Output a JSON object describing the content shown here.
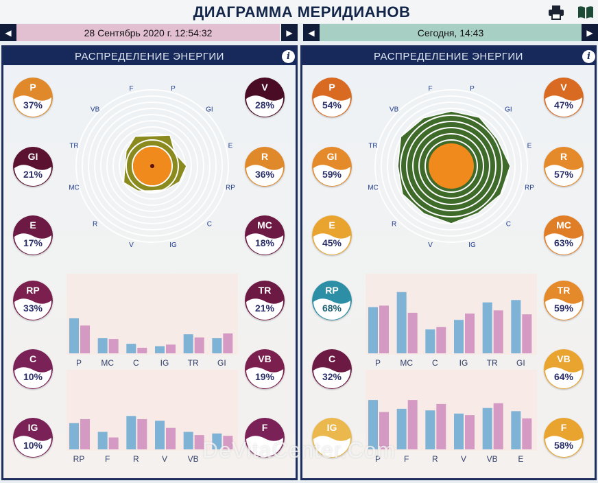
{
  "header": {
    "title": "ДИАГРАММА МЕРИДИАНОВ"
  },
  "icons": {
    "print": "printer-icon",
    "book": "book-icon"
  },
  "left": {
    "date": "28 Сентябрь 2020 г. 12:54:32",
    "panel_title": "РАСПРЕДЕЛЕНИЕ ЭНЕРГИИ",
    "badges": [
      {
        "name": "P",
        "pct": "37%",
        "color": "#e0892a"
      },
      {
        "name": "GI",
        "pct": "21%",
        "color": "#5a1230"
      },
      {
        "name": "E",
        "pct": "17%",
        "color": "#6c1a44"
      },
      {
        "name": "RP",
        "pct": "33%",
        "color": "#7a1f4e"
      },
      {
        "name": "C",
        "pct": "10%",
        "color": "#7a2157"
      },
      {
        "name": "IG",
        "pct": "10%",
        "color": "#7a2157"
      },
      {
        "name": "V",
        "pct": "28%",
        "color": "#4a0c24"
      },
      {
        "name": "R",
        "pct": "36%",
        "color": "#e0892a"
      },
      {
        "name": "MC",
        "pct": "18%",
        "color": "#6c1a44"
      },
      {
        "name": "TR",
        "pct": "21%",
        "color": "#6c1a44"
      },
      {
        "name": "VB",
        "pct": "19%",
        "color": "#7a1f4e"
      },
      {
        "name": "F",
        "pct": "",
        "color": "#7a2157"
      }
    ],
    "radar": {
      "labels": [
        "F",
        "P",
        "GI",
        "E",
        "RP",
        "C",
        "IG",
        "V",
        "R",
        "MC",
        "TR",
        "VB"
      ],
      "fill": "#8a8a1e"
    },
    "chart_top": {
      "type": "bar",
      "categories": [
        "P",
        "MC",
        "C",
        "IG",
        "TR",
        "GI"
      ],
      "series": [
        {
          "values": [
            44,
            19,
            12,
            9,
            24,
            19
          ],
          "color": "#7fb3d6"
        },
        {
          "values": [
            35,
            18,
            7,
            11,
            20,
            25
          ],
          "color": "#d59ac4"
        }
      ],
      "ylim": [
        0,
        100
      ]
    },
    "chart_bottom": {
      "type": "bar",
      "categories": [
        "RP",
        "F",
        "R",
        "V",
        "VB",
        ""
      ],
      "series": [
        {
          "values": [
            33,
            22,
            42,
            36,
            22,
            20
          ],
          "color": "#7fb3d6"
        },
        {
          "values": [
            38,
            15,
            38,
            27,
            18,
            17
          ],
          "color": "#d59ac4"
        }
      ],
      "ylim": [
        0,
        100
      ]
    }
  },
  "right": {
    "date": "Сегодня, 14:43",
    "panel_title": "РАСПРЕДЕЛЕНИЕ ЭНЕРГИИ",
    "badges": [
      {
        "name": "P",
        "pct": "54%",
        "color": "#d86a22"
      },
      {
        "name": "GI",
        "pct": "59%",
        "color": "#e48a2a"
      },
      {
        "name": "E",
        "pct": "45%",
        "color": "#e9a430"
      },
      {
        "name": "RP",
        "pct": "68%",
        "color": "#2c8fa6"
      },
      {
        "name": "C",
        "pct": "32%",
        "color": "#6c1a44"
      },
      {
        "name": "IG",
        "pct": "",
        "color": "#eab84c"
      },
      {
        "name": "V",
        "pct": "47%",
        "color": "#d86a22"
      },
      {
        "name": "R",
        "pct": "57%",
        "color": "#e48a2a"
      },
      {
        "name": "MC",
        "pct": "63%",
        "color": "#e07e28"
      },
      {
        "name": "TR",
        "pct": "59%",
        "color": "#e48a2a"
      },
      {
        "name": "VB",
        "pct": "64%",
        "color": "#e9a430"
      },
      {
        "name": "F",
        "pct": "58%",
        "color": "#e9a430"
      }
    ],
    "radar": {
      "labels": [
        "F",
        "P",
        "GI",
        "E",
        "RP",
        "C",
        "IG",
        "V",
        "R",
        "MC",
        "TR",
        "VB"
      ],
      "fill": "#3e6a2a"
    },
    "chart_top": {
      "type": "bar",
      "categories": [
        "P",
        "MC",
        "C",
        "IG",
        "TR",
        "GI"
      ],
      "series": [
        {
          "values": [
            58,
            77,
            30,
            42,
            64,
            67
          ],
          "color": "#7fb3d6"
        },
        {
          "values": [
            60,
            51,
            33,
            50,
            54,
            49
          ],
          "color": "#d59ac4"
        }
      ],
      "ylim": [
        0,
        100
      ]
    },
    "chart_bottom": {
      "type": "bar",
      "categories": [
        "P",
        "F",
        "R",
        "V",
        "VB",
        "E"
      ],
      "series": [
        {
          "values": [
            62,
            51,
            49,
            45,
            52,
            48
          ],
          "color": "#7fb3d6"
        },
        {
          "values": [
            47,
            62,
            57,
            43,
            58,
            39
          ],
          "color": "#d59ac4"
        }
      ],
      "ylim": [
        0,
        100
      ]
    }
  },
  "watermark": "DeVitaCenter.Com"
}
